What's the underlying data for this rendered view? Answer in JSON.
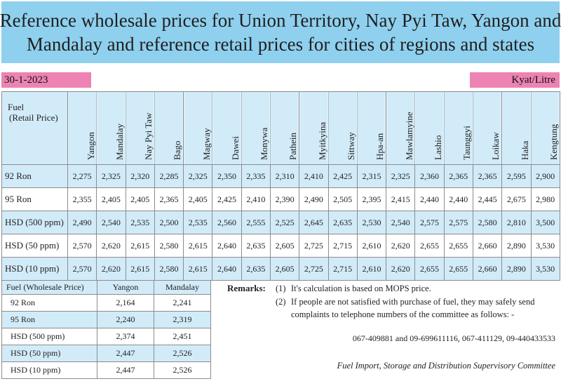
{
  "title": {
    "line1": "Reference wholesale prices for Union Territory, Nay Pyi Taw, Yangon and",
    "line2": "Mandalay and reference retail prices for cities of regions and states"
  },
  "date": "30-1-2023",
  "unit": "Kyat/Litre",
  "retail": {
    "fuel_header": [
      "Fuel",
      "(Retail Price)"
    ],
    "cities": [
      "Yangon",
      "Mandalay",
      "Nay Pyi Taw",
      "Bago",
      "Magway",
      "Dawei",
      "Monywa",
      "Pathein",
      "Myitkyina",
      "Sittway",
      "Hpa-an",
      "Mawlamyine",
      "Lashio",
      "Taunggyi",
      "Loikaw",
      "Haka",
      "Kengtung"
    ],
    "rows": [
      {
        "fuel": "92 Ron",
        "values": [
          "2,275",
          "2,325",
          "2,320",
          "2,285",
          "2,325",
          "2,350",
          "2,335",
          "2,310",
          "2,410",
          "2,425",
          "2,315",
          "2,325",
          "2,360",
          "2,365",
          "2,365",
          "2,595",
          "2,900"
        ]
      },
      {
        "fuel": "95 Ron",
        "values": [
          "2,355",
          "2,405",
          "2,405",
          "2,365",
          "2,405",
          "2,425",
          "2,410",
          "2,390",
          "2,490",
          "2,505",
          "2,395",
          "2,415",
          "2,440",
          "2,440",
          "2,445",
          "2,675",
          "2,980"
        ]
      },
      {
        "fuel": "HSD (500 ppm)",
        "values": [
          "2,490",
          "2,540",
          "2,535",
          "2,500",
          "2,535",
          "2,560",
          "2,555",
          "2,525",
          "2,645",
          "2,635",
          "2,530",
          "2,540",
          "2,575",
          "2,575",
          "2,580",
          "2,810",
          "3,500"
        ]
      },
      {
        "fuel": "HSD (50 ppm)",
        "values": [
          "2,570",
          "2,620",
          "2,615",
          "2,580",
          "2,615",
          "2,640",
          "2,635",
          "2,605",
          "2,725",
          "2,715",
          "2,610",
          "2,620",
          "2,655",
          "2,655",
          "2,660",
          "2,890",
          "3,530"
        ]
      },
      {
        "fuel": "HSD (10 ppm)",
        "values": [
          "2,570",
          "2,620",
          "2,615",
          "2,580",
          "2,615",
          "2,640",
          "2,635",
          "2,605",
          "2,725",
          "2,715",
          "2,610",
          "2,620",
          "2,655",
          "2,655",
          "2,660",
          "2,890",
          "3,530"
        ]
      }
    ]
  },
  "wholesale": {
    "headers": [
      "Fuel (Wholesale Price)",
      "Yangon",
      "Mandalay"
    ],
    "rows": [
      {
        "fuel": "92 Ron",
        "yangon": "2,164",
        "mandalay": "2,241"
      },
      {
        "fuel": "95 Ron",
        "yangon": "2,240",
        "mandalay": "2,319"
      },
      {
        "fuel": "HSD (500 ppm)",
        "yangon": "2,374",
        "mandalay": "2,451"
      },
      {
        "fuel": "HSD (50 ppm)",
        "yangon": "2,447",
        "mandalay": "2,526"
      },
      {
        "fuel": "HSD (10 ppm)",
        "yangon": "2,447",
        "mandalay": "2,526"
      }
    ]
  },
  "remarks": {
    "label": "Remarks:",
    "items": [
      {
        "num": "(1)",
        "text": "It's calculation is based on MOPS price."
      },
      {
        "num": "(2)",
        "text": "If people are not satisfied with purchase of fuel, they may safely send complaints to telephone numbers of the committee as follows: -"
      }
    ],
    "phones": "067-409881 and 09-699611116, 067-411129, 09-440433533",
    "committee": "Fuel Import, Storage and Distribution Supervisory Committee"
  },
  "colors": {
    "banner": "#8fd0ee",
    "pink": "#ec83b3",
    "row_blue": "#d2ebf8"
  }
}
